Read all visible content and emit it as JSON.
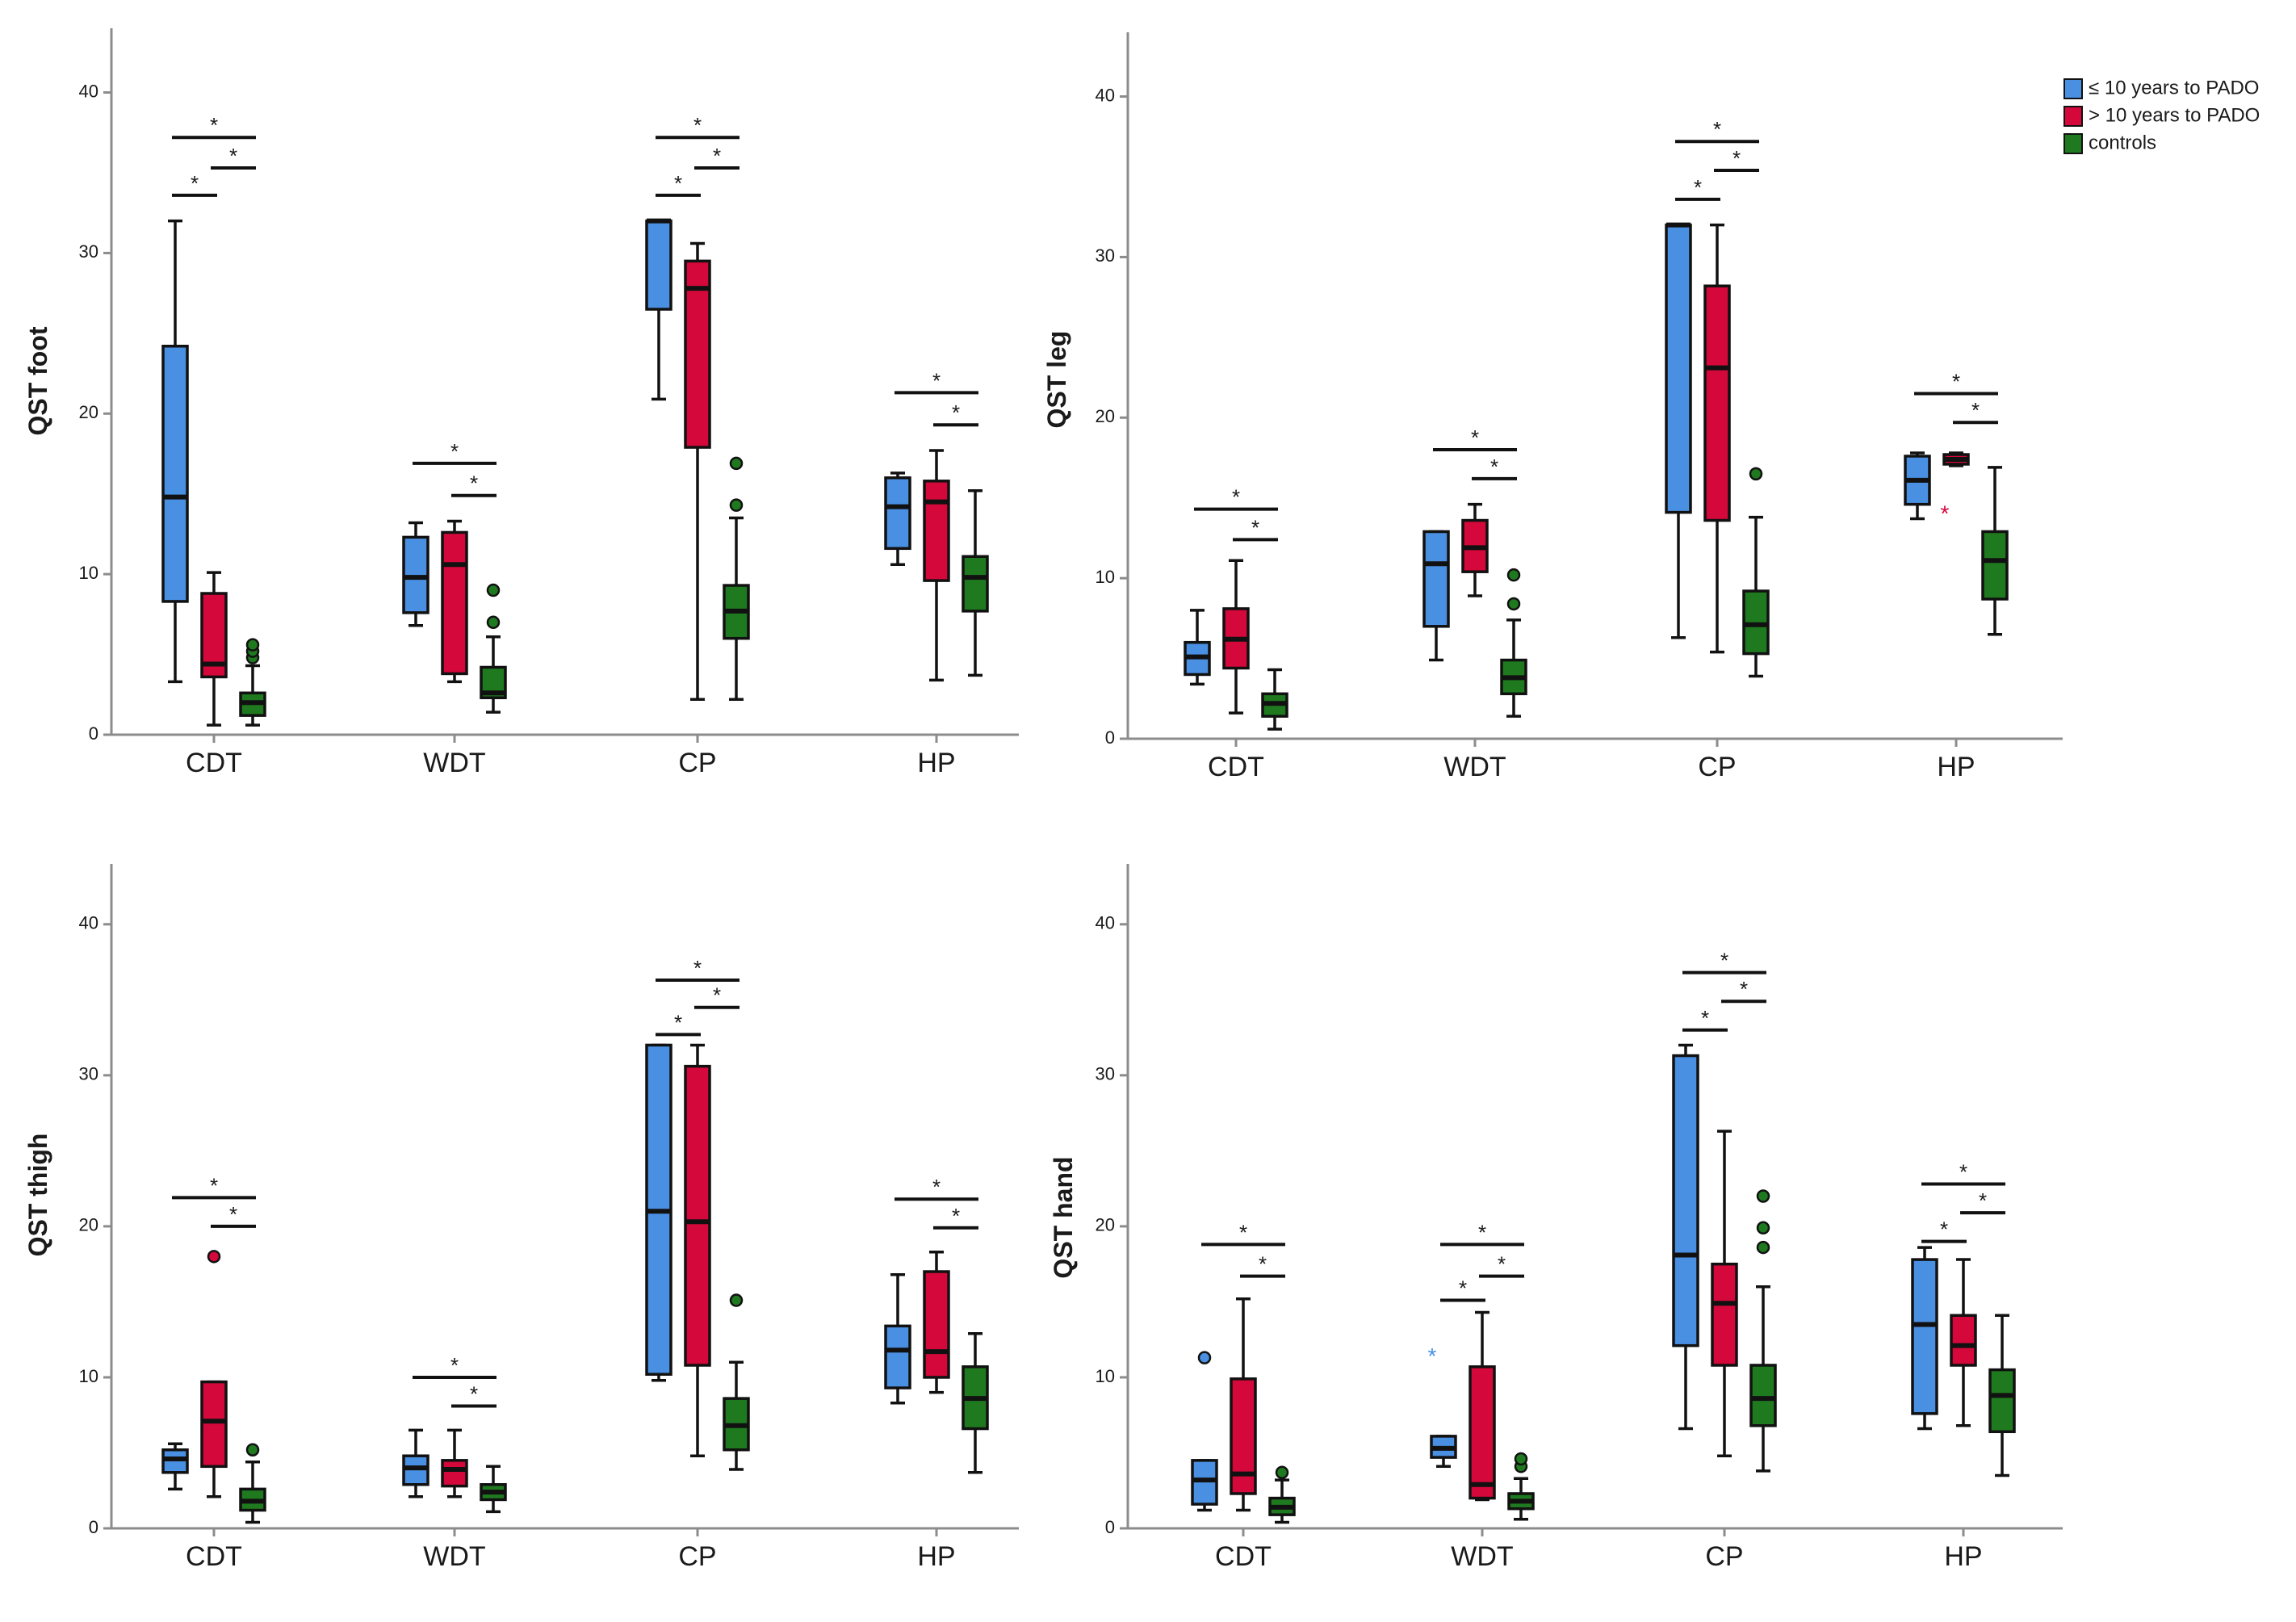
{
  "colors": {
    "group1": "#4a90e2",
    "group2": "#d4083a",
    "group3": "#1f7a1f",
    "axis": "#8c8c8c"
  },
  "legend": {
    "entries": [
      {
        "label": "≤ 10 years to PADO",
        "color_key": "group1"
      },
      {
        "label": "> 10 years to PADO",
        "color_key": "group2"
      },
      {
        "label": "controls",
        "color_key": "group3"
      }
    ],
    "placement": "top-right"
  },
  "chart_data": [
    {
      "type": "box",
      "ylabel": "QST foot",
      "ylim": [
        0,
        44
      ],
      "yticks": [
        0,
        10,
        20,
        30,
        40
      ],
      "categories": [
        "CDT",
        "WDT",
        "CP",
        "HP"
      ],
      "groups": {
        "CDT": [
          {
            "min": 3.3,
            "q1": 8.3,
            "median": 14.8,
            "q3": 24.2,
            "max": 32,
            "outliers": [],
            "extremes": []
          },
          {
            "min": 0.6,
            "q1": 3.6,
            "median": 4.4,
            "q3": 8.8,
            "max": 10.1,
            "outliers": [],
            "extremes": []
          },
          {
            "min": 0.6,
            "q1": 1.2,
            "median": 2.0,
            "q3": 2.6,
            "max": 4.3,
            "outliers": [
              4.8,
              5.2,
              5.6
            ],
            "extremes": []
          }
        ],
        "WDT": [
          {
            "min": 6.8,
            "q1": 7.6,
            "median": 9.8,
            "q3": 12.3,
            "max": 13.2,
            "outliers": [],
            "extremes": []
          },
          {
            "min": 3.3,
            "q1": 3.8,
            "median": 10.6,
            "q3": 12.6,
            "max": 13.3,
            "outliers": [],
            "extremes": []
          },
          {
            "min": 1.4,
            "q1": 2.3,
            "median": 2.6,
            "q3": 4.2,
            "max": 6.1,
            "outliers": [
              7.0,
              9.0
            ],
            "extremes": []
          }
        ],
        "CP": [
          {
            "min": 20.9,
            "q1": 26.5,
            "median": 32,
            "q3": 32,
            "max": 32,
            "outliers": [],
            "extremes": []
          },
          {
            "min": 2.2,
            "q1": 17.9,
            "median": 27.8,
            "q3": 29.5,
            "max": 30.6,
            "outliers": [],
            "extremes": []
          },
          {
            "min": 2.2,
            "q1": 6.0,
            "median": 7.7,
            "q3": 9.3,
            "max": 13.5,
            "outliers": [
              14.3,
              16.9
            ],
            "extremes": []
          }
        ],
        "HP": [
          {
            "min": 10.6,
            "q1": 11.6,
            "median": 14.2,
            "q3": 16.0,
            "max": 16.3,
            "outliers": [],
            "extremes": []
          },
          {
            "min": 3.4,
            "q1": 9.6,
            "median": 14.5,
            "q3": 15.8,
            "max": 17.7,
            "outliers": [],
            "extremes": []
          },
          {
            "min": 3.7,
            "q1": 7.7,
            "median": 9.8,
            "q3": 11.1,
            "max": 15.2,
            "outliers": [],
            "extremes": []
          }
        ]
      },
      "significance": [
        {
          "category": "CDT",
          "from": 0,
          "to": 2,
          "level": 37.2,
          "label": "*"
        },
        {
          "category": "CDT",
          "from": 0,
          "to": 1,
          "level": 33.6,
          "label": "*"
        },
        {
          "category": "CDT",
          "from": 1,
          "to": 2,
          "level": 35.3,
          "label": "*"
        },
        {
          "category": "WDT",
          "from": 0,
          "to": 2,
          "level": 16.9,
          "label": "*"
        },
        {
          "category": "WDT",
          "from": 1,
          "to": 2,
          "level": 14.9,
          "label": "*"
        },
        {
          "category": "CP",
          "from": 0,
          "to": 2,
          "level": 37.2,
          "label": "*"
        },
        {
          "category": "CP",
          "from": 0,
          "to": 1,
          "level": 33.6,
          "label": "*"
        },
        {
          "category": "CP",
          "from": 1,
          "to": 2,
          "level": 35.3,
          "label": "*"
        },
        {
          "category": "HP",
          "from": 0,
          "to": 2,
          "level": 21.3,
          "label": "*"
        },
        {
          "category": "HP",
          "from": 1,
          "to": 2,
          "level": 19.3,
          "label": "*"
        }
      ]
    },
    {
      "type": "box",
      "ylabel": "QST leg",
      "ylim": [
        0,
        44
      ],
      "yticks": [
        0,
        10,
        20,
        30,
        40
      ],
      "categories": [
        "CDT",
        "WDT",
        "CP",
        "HP"
      ],
      "groups": {
        "CDT": [
          {
            "min": 3.4,
            "q1": 4.0,
            "median": 5.1,
            "q3": 6.0,
            "max": 8.0,
            "outliers": [],
            "extremes": []
          },
          {
            "min": 1.6,
            "q1": 4.4,
            "median": 6.2,
            "q3": 8.1,
            "max": 11.1,
            "outliers": [],
            "extremes": []
          },
          {
            "min": 0.6,
            "q1": 1.4,
            "median": 2.2,
            "q3": 2.8,
            "max": 4.3,
            "outliers": [],
            "extremes": []
          }
        ],
        "WDT": [
          {
            "min": 4.9,
            "q1": 7.0,
            "median": 10.9,
            "q3": 12.9,
            "max": 12.9,
            "outliers": [],
            "extremes": []
          },
          {
            "min": 8.9,
            "q1": 10.4,
            "median": 11.9,
            "q3": 13.6,
            "max": 14.6,
            "outliers": [],
            "extremes": []
          },
          {
            "min": 1.4,
            "q1": 2.8,
            "median": 3.8,
            "q3": 4.9,
            "max": 7.4,
            "outliers": [
              8.4,
              10.2
            ],
            "extremes": []
          }
        ],
        "CP": [
          {
            "min": 6.3,
            "q1": 14.1,
            "median": 32,
            "q3": 32,
            "max": 32,
            "outliers": [],
            "extremes": []
          },
          {
            "min": 5.4,
            "q1": 13.6,
            "median": 23.1,
            "q3": 28.2,
            "max": 32,
            "outliers": [],
            "extremes": []
          },
          {
            "min": 3.9,
            "q1": 5.3,
            "median": 7.1,
            "q3": 9.2,
            "max": 13.8,
            "outliers": [
              16.5
            ],
            "extremes": []
          }
        ],
        "HP": [
          {
            "min": 13.7,
            "q1": 14.6,
            "median": 16.1,
            "q3": 17.6,
            "max": 17.8,
            "outliers": [],
            "extremes": []
          },
          {
            "min": 17.0,
            "q1": 17.1,
            "median": 17.4,
            "q3": 17.7,
            "max": 17.8,
            "outliers": [],
            "extremes": [
              14.0
            ]
          },
          {
            "min": 6.5,
            "q1": 8.7,
            "median": 11.1,
            "q3": 12.9,
            "max": 16.9,
            "outliers": [],
            "extremes": []
          }
        ]
      },
      "significance": [
        {
          "category": "CDT",
          "from": 0,
          "to": 2,
          "level": 14.3,
          "label": "*"
        },
        {
          "category": "CDT",
          "from": 1,
          "to": 2,
          "level": 12.4,
          "label": "*"
        },
        {
          "category": "WDT",
          "from": 0,
          "to": 2,
          "level": 18.0,
          "label": "*"
        },
        {
          "category": "WDT",
          "from": 1,
          "to": 2,
          "level": 16.2,
          "label": "*"
        },
        {
          "category": "CP",
          "from": 0,
          "to": 2,
          "level": 37.2,
          "label": "*"
        },
        {
          "category": "CP",
          "from": 0,
          "to": 1,
          "level": 33.6,
          "label": "*"
        },
        {
          "category": "CP",
          "from": 1,
          "to": 2,
          "level": 35.4,
          "label": "*"
        },
        {
          "category": "HP",
          "from": 0,
          "to": 2,
          "level": 21.5,
          "label": "*"
        },
        {
          "category": "HP",
          "from": 1,
          "to": 2,
          "level": 19.7,
          "label": "*"
        }
      ]
    },
    {
      "type": "box",
      "ylabel": "QST thigh",
      "ylim": [
        0,
        44
      ],
      "yticks": [
        0,
        10,
        20,
        30,
        40
      ],
      "categories": [
        "CDT",
        "WDT",
        "CP",
        "HP"
      ],
      "groups": {
        "CDT": [
          {
            "min": 2.6,
            "q1": 3.7,
            "median": 4.6,
            "q3": 5.2,
            "max": 5.6,
            "outliers": [],
            "extremes": []
          },
          {
            "min": 2.1,
            "q1": 4.1,
            "median": 7.1,
            "q3": 9.7,
            "max": 9.7,
            "outliers": [
              18.0
            ],
            "extremes": []
          },
          {
            "min": 0.4,
            "q1": 1.2,
            "median": 1.8,
            "q3": 2.6,
            "max": 4.4,
            "outliers": [
              5.2
            ],
            "extremes": []
          }
        ],
        "WDT": [
          {
            "min": 2.1,
            "q1": 2.9,
            "median": 4.0,
            "q3": 4.8,
            "max": 6.5,
            "outliers": [],
            "extremes": []
          },
          {
            "min": 2.1,
            "q1": 2.8,
            "median": 3.9,
            "q3": 4.5,
            "max": 6.5,
            "outliers": [],
            "extremes": []
          },
          {
            "min": 1.1,
            "q1": 1.9,
            "median": 2.4,
            "q3": 2.9,
            "max": 4.1,
            "outliers": [],
            "extremes": []
          }
        ],
        "CP": [
          {
            "min": 9.8,
            "q1": 10.2,
            "median": 21.0,
            "q3": 32,
            "max": 32,
            "outliers": [],
            "extremes": []
          },
          {
            "min": 4.8,
            "q1": 10.8,
            "median": 20.3,
            "q3": 30.6,
            "max": 32,
            "outliers": [],
            "extremes": []
          },
          {
            "min": 3.9,
            "q1": 5.2,
            "median": 6.8,
            "q3": 8.6,
            "max": 11.0,
            "outliers": [
              15.1
            ],
            "extremes": []
          }
        ],
        "HP": [
          {
            "min": 8.3,
            "q1": 9.3,
            "median": 11.8,
            "q3": 13.4,
            "max": 16.8,
            "outliers": [],
            "extremes": []
          },
          {
            "min": 9.0,
            "q1": 10.0,
            "median": 11.7,
            "q3": 17.0,
            "max": 18.3,
            "outliers": [],
            "extremes": []
          },
          {
            "min": 3.7,
            "q1": 6.6,
            "median": 8.6,
            "q3": 10.7,
            "max": 12.9,
            "outliers": [],
            "extremes": []
          }
        ]
      },
      "significance": [
        {
          "category": "CDT",
          "from": 0,
          "to": 2,
          "level": 21.9,
          "label": "*"
        },
        {
          "category": "CDT",
          "from": 1,
          "to": 2,
          "level": 20.0,
          "label": "*"
        },
        {
          "category": "WDT",
          "from": 0,
          "to": 2,
          "level": 10.0,
          "label": "*"
        },
        {
          "category": "WDT",
          "from": 1,
          "to": 2,
          "level": 8.1,
          "label": "*"
        },
        {
          "category": "CP",
          "from": 0,
          "to": 2,
          "level": 36.3,
          "label": "*"
        },
        {
          "category": "CP",
          "from": 0,
          "to": 1,
          "level": 32.7,
          "label": "*"
        },
        {
          "category": "CP",
          "from": 1,
          "to": 2,
          "level": 34.5,
          "label": "*"
        },
        {
          "category": "HP",
          "from": 0,
          "to": 2,
          "level": 21.8,
          "label": "*"
        },
        {
          "category": "HP",
          "from": 1,
          "to": 2,
          "level": 19.9,
          "label": "*"
        }
      ]
    },
    {
      "type": "box",
      "ylabel": "QST hand",
      "ylim": [
        0,
        44
      ],
      "yticks": [
        0,
        10,
        20,
        30,
        40
      ],
      "categories": [
        "CDT",
        "WDT",
        "CP",
        "HP"
      ],
      "groups": {
        "CDT": [
          {
            "min": 1.2,
            "q1": 1.6,
            "median": 3.2,
            "q3": 4.5,
            "max": 4.5,
            "outliers": [
              11.3
            ],
            "extremes": []
          },
          {
            "min": 1.2,
            "q1": 2.3,
            "median": 3.6,
            "q3": 9.9,
            "max": 15.2,
            "outliers": [],
            "extremes": []
          },
          {
            "min": 0.4,
            "q1": 0.9,
            "median": 1.4,
            "q3": 2.0,
            "max": 3.2,
            "outliers": [
              3.7
            ],
            "extremes": []
          }
        ],
        "WDT": [
          {
            "min": 4.1,
            "q1": 4.7,
            "median": 5.3,
            "q3": 6.1,
            "max": 6.1,
            "outliers": [],
            "extremes": [
              11.4
            ]
          },
          {
            "min": 1.9,
            "q1": 2.0,
            "median": 2.9,
            "q3": 10.7,
            "max": 14.3,
            "outliers": [],
            "extremes": []
          },
          {
            "min": 0.6,
            "q1": 1.3,
            "median": 1.8,
            "q3": 2.3,
            "max": 3.3,
            "outliers": [
              4.1,
              4.6
            ],
            "extremes": []
          }
        ],
        "CP": [
          {
            "min": 6.6,
            "q1": 12.1,
            "median": 18.1,
            "q3": 31.3,
            "max": 32,
            "outliers": [],
            "extremes": []
          },
          {
            "min": 4.8,
            "q1": 10.8,
            "median": 14.9,
            "q3": 17.5,
            "max": 26.3,
            "outliers": [],
            "extremes": []
          },
          {
            "min": 3.8,
            "q1": 6.8,
            "median": 8.6,
            "q3": 10.8,
            "max": 16.0,
            "outliers": [
              18.6,
              19.9,
              22.0
            ],
            "extremes": []
          }
        ],
        "HP": [
          {
            "min": 6.6,
            "q1": 7.6,
            "median": 13.5,
            "q3": 17.8,
            "max": 18.6,
            "outliers": [],
            "extremes": []
          },
          {
            "min": 6.8,
            "q1": 10.8,
            "median": 12.1,
            "q3": 14.1,
            "max": 17.8,
            "outliers": [],
            "extremes": []
          },
          {
            "min": 3.5,
            "q1": 6.4,
            "median": 8.8,
            "q3": 10.5,
            "max": 14.1,
            "outliers": [],
            "extremes": []
          }
        ]
      },
      "significance": [
        {
          "category": "CDT",
          "from": 0,
          "to": 2,
          "level": 18.8,
          "label": "*"
        },
        {
          "category": "CDT",
          "from": 1,
          "to": 2,
          "level": 16.7,
          "label": "*"
        },
        {
          "category": "WDT",
          "from": 0,
          "to": 2,
          "level": 18.8,
          "label": "*"
        },
        {
          "category": "WDT",
          "from": 0,
          "to": 1,
          "level": 15.1,
          "label": "*"
        },
        {
          "category": "WDT",
          "from": 1,
          "to": 2,
          "level": 16.7,
          "label": "*"
        },
        {
          "category": "CP",
          "from": 0,
          "to": 2,
          "level": 36.8,
          "label": "*"
        },
        {
          "category": "CP",
          "from": 0,
          "to": 1,
          "level": 33.0,
          "label": "*"
        },
        {
          "category": "CP",
          "from": 1,
          "to": 2,
          "level": 34.9,
          "label": "*"
        },
        {
          "category": "HP",
          "from": 0,
          "to": 2,
          "level": 22.8,
          "label": "*"
        },
        {
          "category": "HP",
          "from": 0,
          "to": 1,
          "level": 19.0,
          "label": "*"
        },
        {
          "category": "HP",
          "from": 1,
          "to": 2,
          "level": 20.9,
          "label": "*"
        }
      ]
    }
  ]
}
